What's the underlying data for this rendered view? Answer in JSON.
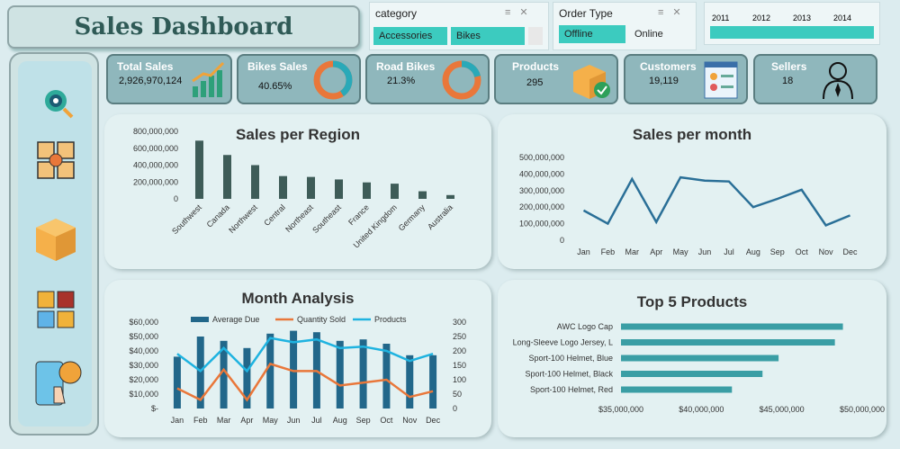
{
  "header": {
    "title": "Sales Dashboard"
  },
  "category_slicer": {
    "label": "category",
    "options": [
      "Accessories",
      "Bikes"
    ]
  },
  "order_type_slicer": {
    "label": "Order Type",
    "options": [
      "Offline",
      "Online"
    ]
  },
  "year_slicer": {
    "years": [
      "2011",
      "2012",
      "2013",
      "2014"
    ]
  },
  "sidebar": {
    "items": [
      "analytics-icon",
      "products-icon",
      "package-icon",
      "categories-icon",
      "shopping-icon"
    ]
  },
  "kpis": {
    "total_sales": {
      "label": "Total Sales",
      "value": "2,926,970,124"
    },
    "bikes_sales": {
      "label": "Bikes Sales",
      "value": "40.65%",
      "fraction": 0.4065
    },
    "road_bikes": {
      "label": "Road Bikes",
      "value": "21.3%",
      "fraction": 0.213
    },
    "products": {
      "label": "Products",
      "value": "295"
    },
    "customers": {
      "label": "Customers",
      "value": "19,119"
    },
    "sellers": {
      "label": "Sellers",
      "value": "18"
    }
  },
  "colors": {
    "dark_bar": "#3e5c58",
    "line_blue": "#2a6f97",
    "bar_blue": "#22678a",
    "orange": "#e9773a",
    "cyan": "#1fb3e0",
    "teal_bar": "#3a9ea5"
  },
  "chart_data": [
    {
      "type": "bar",
      "title": "Sales per Region",
      "categories": [
        "Southwest",
        "Canada",
        "Northwest",
        "Central",
        "Northeast",
        "Southeast",
        "France",
        "United Kingdom",
        "Germany",
        "Australia"
      ],
      "values": [
        690000000,
        520000000,
        400000000,
        270000000,
        260000000,
        230000000,
        195000000,
        180000000,
        90000000,
        45000000
      ],
      "yticks": [
        "0",
        "200,000,000",
        "400,000,000",
        "600,000,000",
        "800,000,000"
      ],
      "ylim": [
        0,
        800000000
      ]
    },
    {
      "type": "line",
      "title": "Sales per month",
      "categories": [
        "Jan",
        "Feb",
        "Mar",
        "Apr",
        "May",
        "Jun",
        "Jul",
        "Aug",
        "Sep",
        "Oct",
        "Nov",
        "Dec"
      ],
      "values": [
        180000000,
        100000000,
        370000000,
        110000000,
        380000000,
        360000000,
        355000000,
        200000000,
        250000000,
        305000000,
        90000000,
        150000000
      ],
      "yticks": [
        "0",
        "100,000,000",
        "200,000,000",
        "300,000,000",
        "400,000,000",
        "500,000,000"
      ],
      "ylim": [
        0,
        500000000
      ]
    },
    {
      "type": "bar",
      "title": "Month Analysis",
      "categories": [
        "Jan",
        "Feb",
        "Mar",
        "Apr",
        "May",
        "Jun",
        "Jul",
        "Aug",
        "Sep",
        "Oct",
        "Nov",
        "Dec"
      ],
      "legend": [
        "Average Due",
        "Quantity Sold",
        "Products"
      ],
      "series": [
        {
          "name": "Average Due",
          "values": [
            36000,
            50000,
            47000,
            42000,
            52000,
            54000,
            53000,
            47000,
            48000,
            45000,
            37000,
            37000
          ]
        },
        {
          "name": "Quantity Sold",
          "values": [
            70,
            30,
            135,
            30,
            155,
            130,
            130,
            80,
            90,
            100,
            40,
            60
          ]
        },
        {
          "name": "Products",
          "values": [
            190,
            130,
            210,
            130,
            245,
            230,
            240,
            210,
            215,
            200,
            165,
            190
          ]
        }
      ],
      "yticks_left": [
        "$-",
        "$10,000",
        "$20,000",
        "$30,000",
        "$40,000",
        "$50,000",
        "$60,000"
      ],
      "ylim_left": [
        0,
        60000
      ],
      "yticks_right": [
        "0",
        "50",
        "100",
        "150",
        "200",
        "250",
        "300"
      ],
      "ylim_right": [
        0,
        300
      ]
    },
    {
      "type": "bar",
      "title": "Top 5 Products",
      "categories": [
        "AWC Logo Cap",
        "Long-Sleeve Logo Jersey, L",
        "Sport-100 Helmet, Blue",
        "Sport-100 Helmet, Black",
        "Sport-100 Helmet, Red"
      ],
      "values": [
        48800000,
        48300000,
        44800000,
        43800000,
        41900000
      ],
      "xticks": [
        "$35,000,000",
        "$40,000,000",
        "$45,000,000",
        "$50,000,000"
      ],
      "xlim": [
        35000000,
        50000000
      ]
    }
  ]
}
